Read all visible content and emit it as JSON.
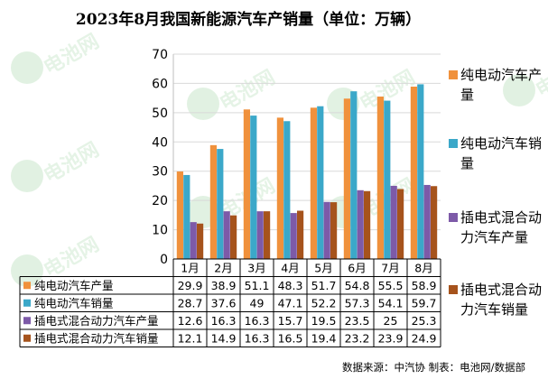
{
  "chart_data": {
    "type": "bar",
    "title": "2023年8月我国新能源汽车产销量（单位：万辆）",
    "categories": [
      "1月",
      "2月",
      "3月",
      "4月",
      "5月",
      "6月",
      "7月",
      "8月"
    ],
    "ylim": [
      0,
      70
    ],
    "yticks": [
      0,
      10,
      20,
      30,
      40,
      50,
      60,
      70
    ],
    "grid": true,
    "legend_position": "right",
    "series": [
      {
        "name": "纯电动汽车产量",
        "color": "#f0913c",
        "values": [
          29.9,
          38.9,
          51.1,
          48.3,
          51.7,
          54.8,
          55.5,
          58.9
        ]
      },
      {
        "name": "纯电动汽车销量",
        "color": "#3ba8c9",
        "values": [
          28.7,
          37.6,
          49,
          47.1,
          52.2,
          57.3,
          54.1,
          59.7
        ]
      },
      {
        "name": "插电式混合动力汽车产量",
        "color": "#7d5aa8",
        "values": [
          12.6,
          16.3,
          16.3,
          15.7,
          19.5,
          23.5,
          25,
          25.3
        ]
      },
      {
        "name": "插电式混合动力汽车销量",
        "color": "#a6531c",
        "values": [
          12.1,
          14.9,
          16.3,
          16.5,
          19.4,
          23.2,
          23.9,
          24.9
        ]
      }
    ],
    "legend_lines": [
      [
        "纯电动汽车产",
        "量"
      ],
      [
        "纯电动汽车销",
        "量"
      ],
      [
        "插电式混合动",
        "力汽车产量"
      ],
      [
        "插电式混合动",
        "力汽车销量"
      ]
    ],
    "source": "数据来源：中汽协 制表：电池网/数据部"
  },
  "watermark": "电池网"
}
